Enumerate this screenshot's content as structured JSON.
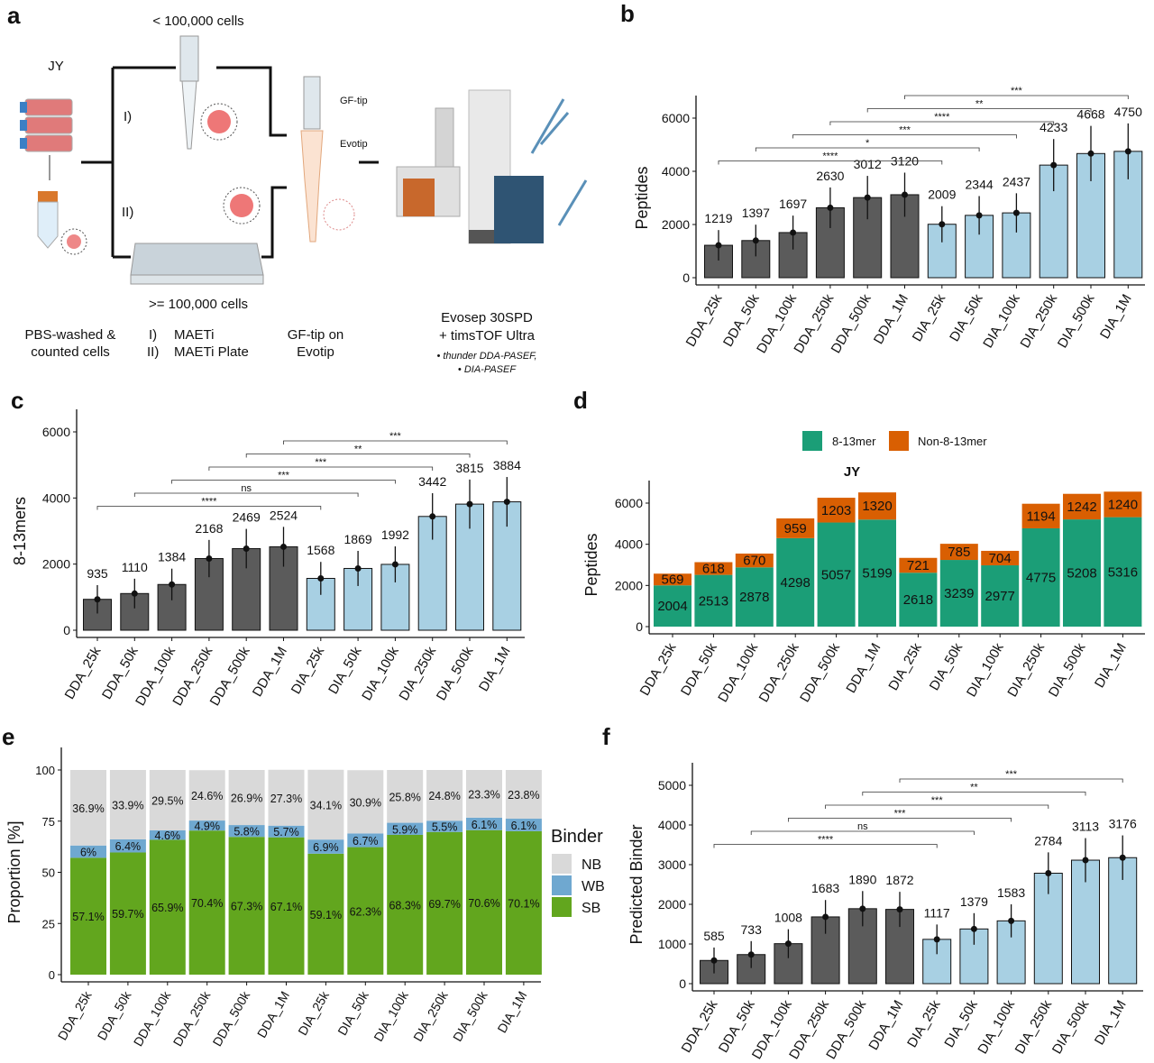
{
  "panel_letters": {
    "a": "a",
    "b": "b",
    "c": "c",
    "d": "d",
    "e": "e",
    "f": "f"
  },
  "panel_a": {
    "cell_line": "JY",
    "small_input": "< 100,000 cells",
    "large_input": ">= 100,000 cells",
    "route_1": "I)",
    "route_2": "II)",
    "gf_tip": "GF-tip",
    "evotip": "Evotip",
    "step1_line1": "PBS-washed &",
    "step1_line2": "counted cells",
    "step2_line1_num": "I)",
    "step2_line1": "MAETi",
    "step2_line2_num": "II)",
    "step2_line2": "MAETi Plate",
    "step3_line1": "GF-tip on",
    "step3_line2": "Evotip",
    "step4_line1": "Evosep 30SPD",
    "step4_line2": "+ timsTOF Ultra",
    "step4_bullet1": "• thunder DDA-PASEF,",
    "step4_bullet2": "• DIA-PASEF"
  },
  "colors": {
    "dda": "#5b5b5b",
    "dia": "#a8d0e3",
    "mer": "#1b9e77",
    "nonmer": "#d95f02",
    "nb": "#d9d9d9",
    "wb": "#6fa8d0",
    "sb": "#62a61e"
  },
  "chart_data": [
    {
      "id": "b",
      "type": "bar",
      "ylabel": "Peptides",
      "categories": [
        "DDA_25k",
        "DDA_50k",
        "DDA_100k",
        "DDA_250k",
        "DDA_500k",
        "DDA_1M",
        "DIA_25k",
        "DIA_50k",
        "DIA_100k",
        "DIA_250k",
        "DIA_500k",
        "DIA_1M"
      ],
      "values": [
        1219,
        1397,
        1697,
        2630,
        3012,
        3120,
        2009,
        2344,
        2437,
        4233,
        4668,
        4750
      ],
      "ylim": [
        0,
        6000
      ],
      "yticks": [
        0,
        2000,
        4000,
        6000
      ],
      "significance": [
        {
          "pair": [
            "DDA_25k",
            "DIA_25k"
          ],
          "label": "****"
        },
        {
          "pair": [
            "DDA_50k",
            "DIA_50k"
          ],
          "label": "*"
        },
        {
          "pair": [
            "DDA_100k",
            "DIA_100k"
          ],
          "label": "***"
        },
        {
          "pair": [
            "DDA_250k",
            "DIA_250k"
          ],
          "label": "****"
        },
        {
          "pair": [
            "DDA_500k",
            "DIA_500k"
          ],
          "label": "**"
        },
        {
          "pair": [
            "DDA_1M",
            "DIA_1M"
          ],
          "label": "***"
        }
      ]
    },
    {
      "id": "c",
      "type": "bar",
      "ylabel": "8-13mers",
      "categories": [
        "DDA_25k",
        "DDA_50k",
        "DDA_100k",
        "DDA_250k",
        "DDA_500k",
        "DDA_1M",
        "DIA_25k",
        "DIA_50k",
        "DIA_100k",
        "DIA_250k",
        "DIA_500k",
        "DIA_1M"
      ],
      "values": [
        935,
        1110,
        1384,
        2168,
        2469,
        2524,
        1568,
        1869,
        1992,
        3442,
        3815,
        3884
      ],
      "ylim": [
        0,
        6000
      ],
      "yticks": [
        0,
        2000,
        4000,
        6000
      ],
      "significance": [
        {
          "pair": [
            "DDA_25k",
            "DIA_25k"
          ],
          "label": "****"
        },
        {
          "pair": [
            "DDA_50k",
            "DIA_50k"
          ],
          "label": "ns"
        },
        {
          "pair": [
            "DDA_100k",
            "DIA_100k"
          ],
          "label": "***"
        },
        {
          "pair": [
            "DDA_250k",
            "DIA_250k"
          ],
          "label": "***"
        },
        {
          "pair": [
            "DDA_500k",
            "DIA_500k"
          ],
          "label": "**"
        },
        {
          "pair": [
            "DDA_1M",
            "DIA_1M"
          ],
          "label": "***"
        }
      ]
    },
    {
      "id": "d",
      "type": "bar",
      "stacked": true,
      "title": "JY",
      "ylabel": "Peptides",
      "categories": [
        "DDA_25k",
        "DDA_50k",
        "DDA_100k",
        "DDA_250k",
        "DDA_500k",
        "DDA_1M",
        "DIA_25k",
        "DIA_50k",
        "DIA_100k",
        "DIA_250k",
        "DIA_500k",
        "DIA_1M"
      ],
      "series": [
        {
          "name": "8-13mer",
          "values": [
            2004,
            2513,
            2878,
            4298,
            5057,
            5199,
            2618,
            3239,
            2977,
            4775,
            5208,
            5316
          ]
        },
        {
          "name": "Non-8-13mer",
          "values": [
            569,
            618,
            670,
            959,
            1203,
            1320,
            721,
            785,
            704,
            1194,
            1242,
            1240
          ]
        }
      ],
      "ylim": [
        0,
        6000
      ],
      "yticks": [
        0,
        2000,
        4000,
        6000
      ],
      "legend": "top"
    },
    {
      "id": "e",
      "type": "bar",
      "stacked": true,
      "ylabel": "Proportion [%]",
      "legend_title": "Binder",
      "categories": [
        "DDA_25k",
        "DDA_50k",
        "DDA_100k",
        "DDA_250k",
        "DDA_500k",
        "DDA_1M",
        "DIA_25k",
        "DIA_50k",
        "DIA_100k",
        "DIA_250k",
        "DIA_500k",
        "DIA_1M"
      ],
      "series": [
        {
          "name": "SB",
          "values": [
            57.1,
            59.7,
            65.9,
            70.4,
            67.3,
            67.1,
            59.1,
            62.3,
            68.3,
            69.7,
            70.6,
            70.1
          ],
          "labels": [
            "57.1%",
            "59.7%",
            "65.9%",
            "70.4%",
            "67.3%",
            "67.1%",
            "59.1%",
            "62.3%",
            "68.3%",
            "69.7%",
            "70.6%",
            "70.1%"
          ]
        },
        {
          "name": "WB",
          "values": [
            6,
            6.4,
            4.6,
            4.9,
            5.8,
            5.7,
            6.9,
            6.7,
            5.9,
            5.5,
            6.1,
            6.1
          ],
          "labels": [
            "6%",
            "6.4%",
            "4.6%",
            "4.9%",
            "5.8%",
            "5.7%",
            "6.9%",
            "6.7%",
            "5.9%",
            "5.5%",
            "6.1%",
            "6.1%"
          ]
        },
        {
          "name": "NB",
          "values": [
            36.9,
            33.9,
            29.5,
            24.6,
            26.9,
            27.3,
            34.1,
            30.9,
            25.8,
            24.8,
            23.3,
            23.8
          ],
          "labels": [
            "36.9%",
            "33.9%",
            "29.5%",
            "24.6%",
            "26.9%",
            "27.3%",
            "34.1%",
            "30.9%",
            "25.8%",
            "24.8%",
            "23.3%",
            "23.8%"
          ]
        }
      ],
      "legend_order": [
        "NB",
        "WB",
        "SB"
      ],
      "ylim": [
        0,
        100
      ],
      "yticks": [
        0,
        25,
        50,
        75,
        100
      ],
      "legend": "right"
    },
    {
      "id": "f",
      "type": "bar",
      "ylabel": "Predicted Binder",
      "categories": [
        "DDA_25k",
        "DDA_50k",
        "DDA_100k",
        "DDA_250k",
        "DDA_500k",
        "DDA_1M",
        "DIA_25k",
        "DIA_50k",
        "DIA_100k",
        "DIA_250k",
        "DIA_500k",
        "DIA_1M"
      ],
      "values": [
        585,
        733,
        1008,
        1683,
        1890,
        1872,
        1117,
        1379,
        1583,
        2784,
        3113,
        3176
      ],
      "ylim": [
        0,
        5000
      ],
      "yticks": [
        0,
        1000,
        2000,
        3000,
        4000,
        5000
      ],
      "significance": [
        {
          "pair": [
            "DDA_25k",
            "DIA_25k"
          ],
          "label": "****"
        },
        {
          "pair": [
            "DDA_50k",
            "DIA_50k"
          ],
          "label": "ns"
        },
        {
          "pair": [
            "DDA_100k",
            "DIA_100k"
          ],
          "label": "***"
        },
        {
          "pair": [
            "DDA_250k",
            "DIA_250k"
          ],
          "label": "***"
        },
        {
          "pair": [
            "DDA_500k",
            "DIA_500k"
          ],
          "label": "**"
        },
        {
          "pair": [
            "DDA_1M",
            "DIA_1M"
          ],
          "label": "***"
        }
      ]
    }
  ]
}
